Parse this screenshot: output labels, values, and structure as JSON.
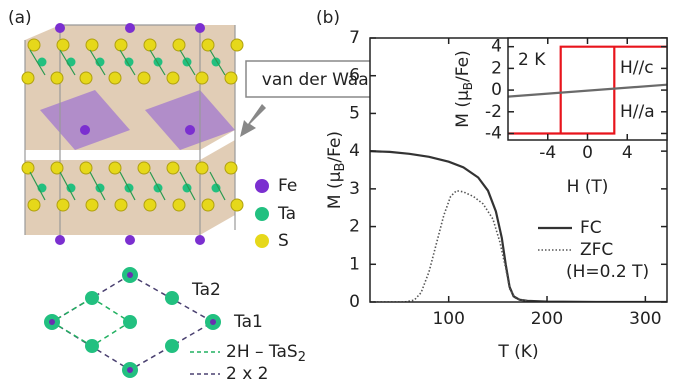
{
  "panel_a": {
    "label": "(a)",
    "callout": "van der Waals",
    "legend": [
      "Fe",
      "Ta",
      "S"
    ],
    "site_labels": [
      "Ta2",
      "Ta1"
    ],
    "lattice_legend": [
      [
        "2H – TaS",
        "2"
      ],
      "2 x 2"
    ]
  },
  "chart_data": [
    {
      "type": "line",
      "panel_label": "(b)",
      "xlabel": "T (K)",
      "ylabel": [
        "M (μ",
        "B",
        "/Fe)"
      ],
      "xlim": [
        20,
        322
      ],
      "ylim": [
        0,
        7
      ],
      "xticks": [
        100,
        200,
        300
      ],
      "yticks": [
        0,
        1,
        2,
        3,
        4,
        5,
        6,
        7
      ],
      "annotation": "(H=0.2 T)",
      "series": [
        {
          "name": "FC",
          "color": "#333333",
          "style": "solid",
          "x": [
            20,
            40,
            60,
            80,
            100,
            115,
            130,
            140,
            148,
            154,
            158,
            162,
            166,
            172,
            180,
            200,
            250,
            322
          ],
          "values": [
            4.0,
            3.98,
            3.93,
            3.85,
            3.72,
            3.57,
            3.3,
            2.95,
            2.4,
            1.7,
            1.0,
            0.4,
            0.15,
            0.06,
            0.03,
            0.01,
            0,
            0
          ]
        },
        {
          "name": "ZFC",
          "color": "#555555",
          "style": "dotted",
          "x": [
            20,
            55,
            65,
            72,
            80,
            88,
            95,
            102,
            108,
            115,
            125,
            135,
            145,
            152,
            158,
            162,
            168,
            180
          ],
          "values": [
            0,
            0,
            0.05,
            0.25,
            0.8,
            1.6,
            2.3,
            2.8,
            2.95,
            2.92,
            2.8,
            2.6,
            2.2,
            1.6,
            0.9,
            0.35,
            0.1,
            0.02
          ]
        }
      ]
    },
    {
      "type": "line",
      "xlabel": "H (T)",
      "ylabel": [
        "M (μ",
        "B",
        "/Fe)"
      ],
      "xlim": [
        -8,
        8
      ],
      "ylim": [
        -4.6,
        4.8
      ],
      "xticks": [
        -4,
        0,
        4
      ],
      "yticks": [
        -4,
        -2,
        0,
        2,
        4
      ],
      "annotation": "2 K",
      "series": [
        {
          "name": "H//c",
          "color": "#e8141c",
          "style": "solid",
          "x": [
            -8,
            2.7,
            2.7,
            8,
            -2.7,
            -2.7,
            -8
          ],
          "values": [
            -4,
            -4,
            4,
            4,
            4,
            -4,
            -4
          ]
        },
        {
          "name": "H//a",
          "color": "#6a6a6a",
          "style": "solid",
          "x": [
            -8,
            8
          ],
          "values": [
            -0.6,
            0.5
          ]
        }
      ]
    }
  ]
}
